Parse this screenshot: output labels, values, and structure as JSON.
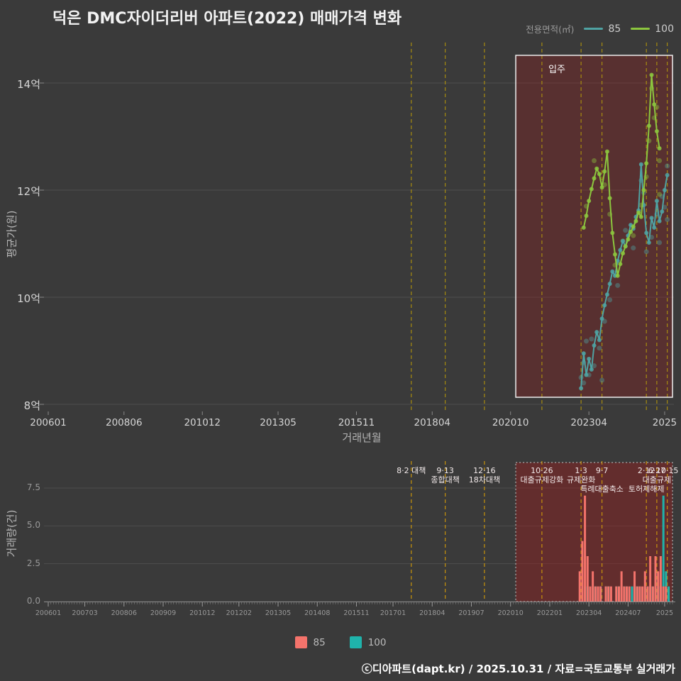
{
  "legend_area": {
    "title": "전용면적(㎡)"
  },
  "footer": "ⓒ디아파트(dapt.kr) / 2025.10.31 / 자료=국토교통부 실거래가",
  "chart_data": [
    {
      "type": "line",
      "title": "덕은 DMC자이더리버 아파트(2022) 매매가격 변화",
      "xlabel": "거래년월",
      "ylabel": "평균가(원)",
      "unit": "억원",
      "x_range": [
        "200601",
        "202512"
      ],
      "ylim_eok": [
        7.8,
        14.6
      ],
      "grid": true,
      "y_ticks": [
        {
          "v": 8,
          "label": "8억"
        },
        {
          "v": 10,
          "label": "10억"
        },
        {
          "v": 12,
          "label": "12억"
        },
        {
          "v": 14,
          "label": "14억"
        }
      ],
      "x_ticks": [
        {
          "m": "200601",
          "label": "200601"
        },
        {
          "m": "200806",
          "label": "200806"
        },
        {
          "m": "201012",
          "label": "201012"
        },
        {
          "m": "201305",
          "label": "201305"
        },
        {
          "m": "201511",
          "label": "201511"
        },
        {
          "m": "201804",
          "label": "201804"
        },
        {
          "m": "202010",
          "label": "202010"
        },
        {
          "m": "202304",
          "label": "202304"
        },
        {
          "m": "202509",
          "label": "2025"
        }
      ],
      "region": {
        "label": "입주",
        "start": "202012",
        "end": "202512"
      },
      "policy_lines": [
        "201708",
        "201809",
        "201912",
        "202110",
        "202301",
        "202309",
        "202502",
        "202506",
        "202510"
      ],
      "series": [
        {
          "name": "85",
          "color": "#4fa3a3",
          "points": [
            [
              "202301",
              8.3
            ],
            [
              "202302",
              8.95
            ],
            [
              "202303",
              8.55
            ],
            [
              "202304",
              8.85
            ],
            [
              "202305",
              8.65
            ],
            [
              "202306",
              9.1
            ],
            [
              "202307",
              9.35
            ],
            [
              "202308",
              9.2
            ],
            [
              "202309",
              9.6
            ],
            [
              "202310",
              9.85
            ],
            [
              "202311",
              10.05
            ],
            [
              "202312",
              10.25
            ],
            [
              "202401",
              10.48
            ],
            [
              "202402",
              10.4
            ],
            [
              "202403",
              10.68
            ],
            [
              "202404",
              10.88
            ],
            [
              "202405",
              11.05
            ],
            [
              "202406",
              10.95
            ],
            [
              "202407",
              11.15
            ],
            [
              "202408",
              11.35
            ],
            [
              "202409",
              11.28
            ],
            [
              "202410",
              11.5
            ],
            [
              "202411",
              11.62
            ],
            [
              "202412",
              12.48
            ],
            [
              "202501",
              11.72
            ],
            [
              "202502",
              11.2
            ],
            [
              "202503",
              11.02
            ],
            [
              "202504",
              11.48
            ],
            [
              "202505",
              11.3
            ],
            [
              "202506",
              11.8
            ],
            [
              "202507",
              11.42
            ],
            [
              "202508",
              11.6
            ],
            [
              "202509",
              12.0
            ],
            [
              "202510",
              12.28
            ]
          ]
        },
        {
          "name": "100",
          "color": "#8cc63e",
          "points": [
            [
              "202302",
              11.3
            ],
            [
              "202303",
              11.52
            ],
            [
              "202304",
              11.8
            ],
            [
              "202305",
              12.02
            ],
            [
              "202306",
              12.22
            ],
            [
              "202307",
              12.4
            ],
            [
              "202308",
              12.3
            ],
            [
              "202309",
              12.05
            ],
            [
              "202310",
              12.35
            ],
            [
              "202311",
              12.72
            ],
            [
              "202312",
              11.85
            ],
            [
              "202401",
              11.2
            ],
            [
              "202402",
              10.8
            ],
            [
              "202403",
              10.4
            ],
            [
              "202404",
              10.62
            ],
            [
              "202405",
              10.82
            ],
            [
              "202406",
              10.95
            ],
            [
              "202407",
              11.08
            ],
            [
              "202408",
              11.22
            ],
            [
              "202409",
              11.32
            ],
            [
              "202410",
              11.42
            ],
            [
              "202411",
              11.58
            ],
            [
              "202412",
              11.5
            ],
            [
              "202501",
              12.0
            ],
            [
              "202502",
              12.5
            ],
            [
              "202503",
              13.2
            ],
            [
              "202504",
              14.15
            ],
            [
              "202505",
              13.6
            ],
            [
              "202506",
              13.1
            ],
            [
              "202507",
              12.78
            ]
          ]
        }
      ],
      "scatter": [
        {
          "name": "85",
          "color": "#4fa3a3",
          "points": [
            [
              "202301",
              8.5
            ],
            [
              "202302",
              8.78
            ],
            [
              "202302",
              8.4
            ],
            [
              "202303",
              9.18
            ],
            [
              "202304",
              8.55
            ],
            [
              "202305",
              9.22
            ],
            [
              "202306",
              8.72
            ],
            [
              "202308",
              9.05
            ],
            [
              "202309",
              8.45
            ],
            [
              "202310",
              9.55
            ],
            [
              "202312",
              9.95
            ],
            [
              "202403",
              10.22
            ],
            [
              "202406",
              11.25
            ],
            [
              "202409",
              10.92
            ],
            [
              "202412",
              12.18
            ],
            [
              "202501",
              11.95
            ],
            [
              "202502",
              10.85
            ],
            [
              "202504",
              11.12
            ],
            [
              "202506",
              11.55
            ],
            [
              "202507",
              11.02
            ],
            [
              "202508",
              11.88
            ],
            [
              "202509",
              11.68
            ],
            [
              "202510",
              11.45
            ],
            [
              "202510",
              12.45
            ]
          ]
        },
        {
          "name": "100",
          "color": "#8cc63e",
          "points": [
            [
              "202303",
              11.7
            ],
            [
              "202306",
              12.55
            ],
            [
              "202310",
              12.1
            ],
            [
              "202312",
              11.55
            ],
            [
              "202402",
              10.6
            ],
            [
              "202405",
              11.05
            ],
            [
              "202409",
              11.15
            ],
            [
              "202412",
              11.72
            ],
            [
              "202502",
              12.25
            ],
            [
              "202503",
              12.92
            ],
            [
              "202504",
              13.9
            ],
            [
              "202505",
              13.35
            ],
            [
              "202506",
              13.55
            ],
            [
              "202507",
              12.55
            ],
            [
              "202507",
              11.92
            ]
          ]
        }
      ]
    },
    {
      "type": "bar",
      "ylabel": "거래량(건)",
      "ylim": [
        0,
        8.6
      ],
      "y_ticks": [
        {
          "v": 0,
          "label": "0.0"
        },
        {
          "v": 2.5,
          "label": "2.5"
        },
        {
          "v": 5,
          "label": "5.0"
        },
        {
          "v": 7.5,
          "label": "7.5"
        }
      ],
      "x_ticks": [
        {
          "m": "200601",
          "label": "200601"
        },
        {
          "m": "200703",
          "label": "200703"
        },
        {
          "m": "200806",
          "label": "200806"
        },
        {
          "m": "200909",
          "label": "200909"
        },
        {
          "m": "201012",
          "label": "201012"
        },
        {
          "m": "201202",
          "label": "201202"
        },
        {
          "m": "201305",
          "label": "201305"
        },
        {
          "m": "201408",
          "label": "201408"
        },
        {
          "m": "201511",
          "label": "201511"
        },
        {
          "m": "201701",
          "label": "201701"
        },
        {
          "m": "201804",
          "label": "201804"
        },
        {
          "m": "201907",
          "label": "201907"
        },
        {
          "m": "202010",
          "label": "202010"
        },
        {
          "m": "202201",
          "label": "202201"
        },
        {
          "m": "202304",
          "label": "202304"
        },
        {
          "m": "202407",
          "label": "202407"
        },
        {
          "m": "202509",
          "label": "2025"
        }
      ],
      "region": {
        "start": "202012",
        "end": "202512"
      },
      "series": [
        {
          "name": "85",
          "color": "#f4736b"
        },
        {
          "name": "100",
          "color": "#1fb3ab"
        }
      ],
      "bars": [
        [
          "202301",
          2,
          0
        ],
        [
          "202302",
          4,
          1
        ],
        [
          "202303",
          7,
          1
        ],
        [
          "202304",
          3,
          0
        ],
        [
          "202305",
          1,
          1
        ],
        [
          "202306",
          2,
          1
        ],
        [
          "202307",
          1,
          0
        ],
        [
          "202308",
          1,
          1
        ],
        [
          "202309",
          1,
          0
        ],
        [
          "202310",
          0,
          1
        ],
        [
          "202311",
          1,
          1
        ],
        [
          "202312",
          1,
          0
        ],
        [
          "202401",
          1,
          0
        ],
        [
          "202402",
          0,
          1
        ],
        [
          "202403",
          1,
          1
        ],
        [
          "202404",
          1,
          0
        ],
        [
          "202405",
          2,
          1
        ],
        [
          "202406",
          1,
          1
        ],
        [
          "202407",
          1,
          0
        ],
        [
          "202408",
          1,
          1
        ],
        [
          "202409",
          0,
          1
        ],
        [
          "202410",
          2,
          1
        ],
        [
          "202411",
          1,
          1
        ],
        [
          "202412",
          1,
          0
        ],
        [
          "202501",
          1,
          1
        ],
        [
          "202502",
          2,
          1
        ],
        [
          "202503",
          1,
          1
        ],
        [
          "202504",
          3,
          1
        ],
        [
          "202505",
          1,
          2
        ],
        [
          "202506",
          3,
          1
        ],
        [
          "202507",
          2,
          1
        ],
        [
          "202508",
          3,
          7
        ],
        [
          "202509",
          1,
          2
        ],
        [
          "202510",
          1,
          1
        ]
      ],
      "annotations": [
        {
          "month": "201708",
          "date": "8·2 대책",
          "label": "",
          "row": 1
        },
        {
          "month": "201809",
          "date": "9·13",
          "label": "종합대책",
          "row": 1
        },
        {
          "month": "201912",
          "date": "12·16",
          "label": "18차대책",
          "row": 1
        },
        {
          "month": "202110",
          "date": "10·26",
          "label": "대출규제강화",
          "row": 1
        },
        {
          "month": "202301",
          "date": "1·3",
          "label": "규제완화",
          "row": 1
        },
        {
          "month": "202309",
          "date": "9·7",
          "label": "특례대출축소",
          "row": 2
        },
        {
          "month": "202502",
          "date": "2·12",
          "label": "토허제해제",
          "row": 2
        },
        {
          "month": "202506",
          "date": "6·27",
          "label": "대출규제",
          "row": 1
        },
        {
          "month": "202510",
          "date": "10·15",
          "label": "",
          "row": 1
        }
      ]
    }
  ]
}
